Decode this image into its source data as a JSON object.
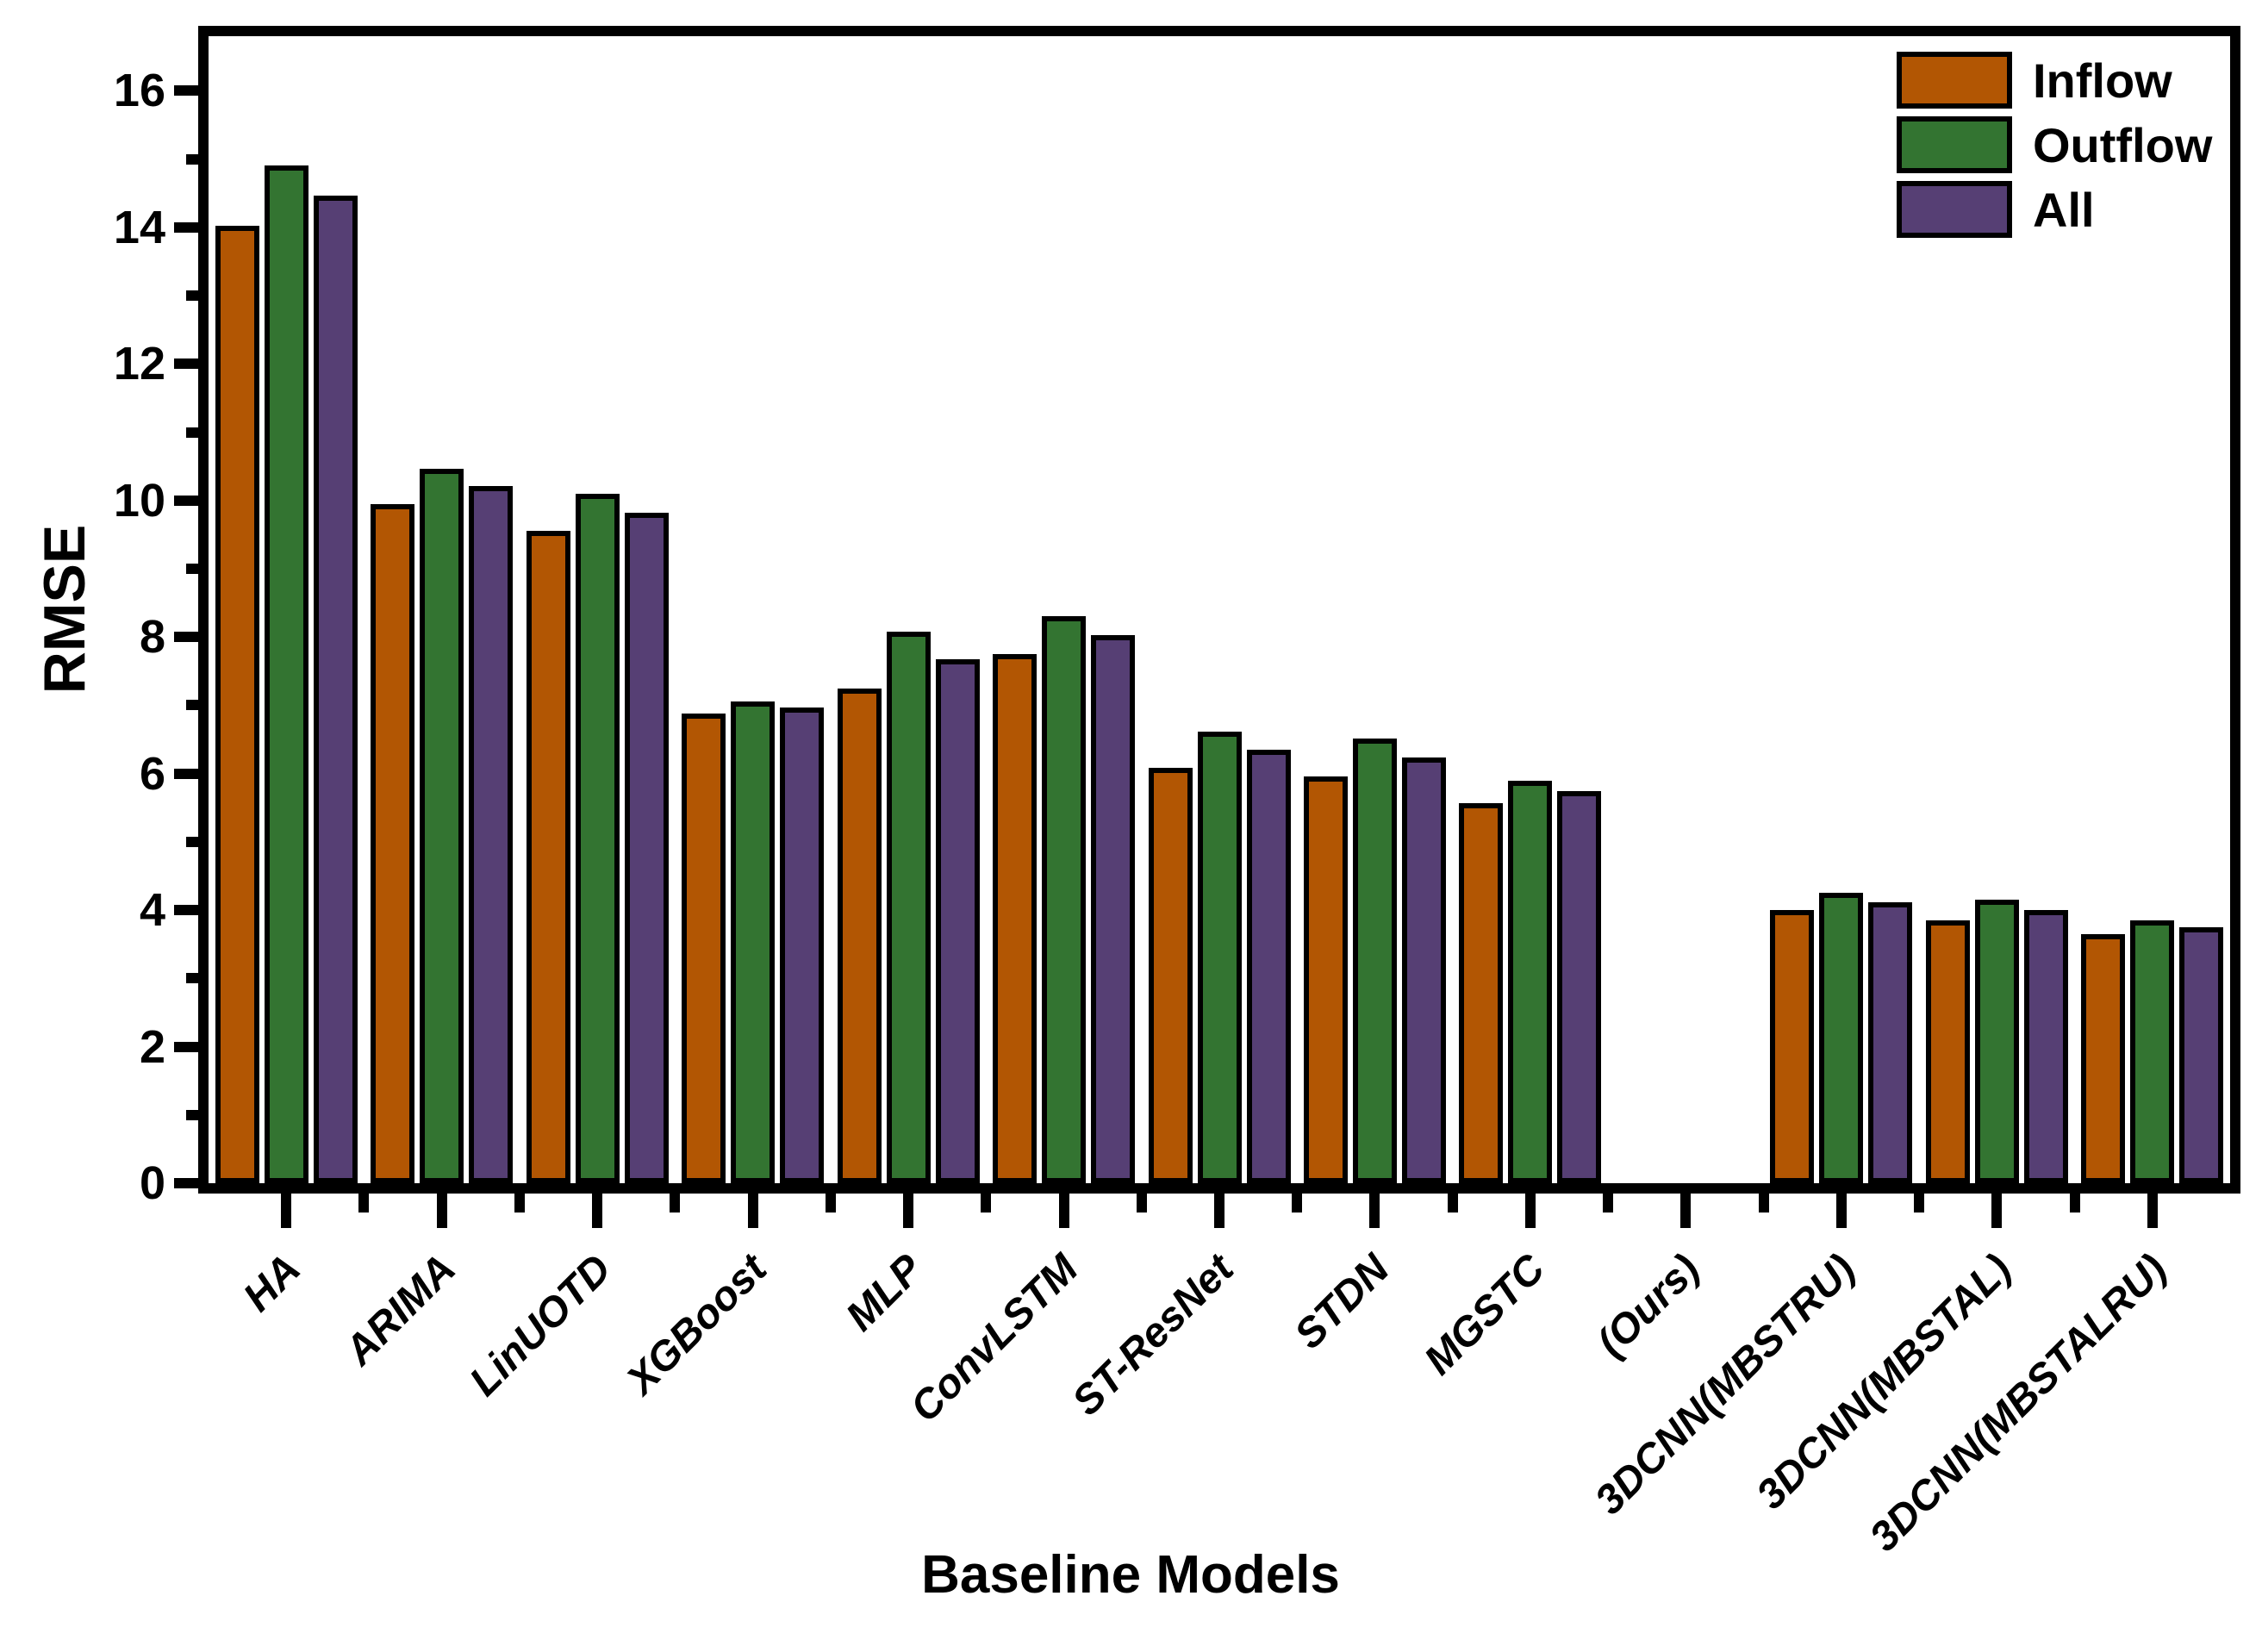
{
  "chart_data": {
    "type": "bar",
    "ylabel": "RMSE",
    "xlabel": "Baseline Models",
    "ylim": [
      0,
      16.8
    ],
    "ytick_major": [
      0,
      2,
      4,
      6,
      8,
      10,
      12,
      14,
      16
    ],
    "ytick_minor": [
      1,
      3,
      5,
      7,
      9,
      11,
      13,
      15
    ],
    "grid": false,
    "legend_position": "top-right-inside",
    "categories": [
      "HA",
      "ARIMA",
      "LinUOTD",
      "XGBoost",
      "MLP",
      "ConvLSTM",
      "ST-ResNet",
      "STDN",
      "MGSTC",
      "(Ours)",
      "3DCNN(MBSTRU)",
      "3DCNN(MBSTAL)",
      "3DCNN(MBSTALRU)"
    ],
    "series": [
      {
        "name": "Inflow",
        "color": "#B25603",
        "values": [
          14.02,
          9.95,
          9.55,
          6.88,
          7.25,
          7.75,
          6.08,
          5.96,
          5.57,
          null,
          4.0,
          3.85,
          3.65
        ]
      },
      {
        "name": "Outflow",
        "color": "#337431",
        "values": [
          14.91,
          10.47,
          10.1,
          7.06,
          8.08,
          8.3,
          6.62,
          6.51,
          5.9,
          null,
          4.25,
          4.15,
          3.85
        ]
      },
      {
        "name": "All",
        "color": "#563F74",
        "values": [
          14.46,
          10.21,
          9.82,
          6.97,
          7.67,
          8.03,
          6.35,
          6.24,
          5.74,
          null,
          4.12,
          4.0,
          3.75
        ]
      }
    ],
    "frame_color": "#000000",
    "background_color": "#FFFFFF"
  }
}
